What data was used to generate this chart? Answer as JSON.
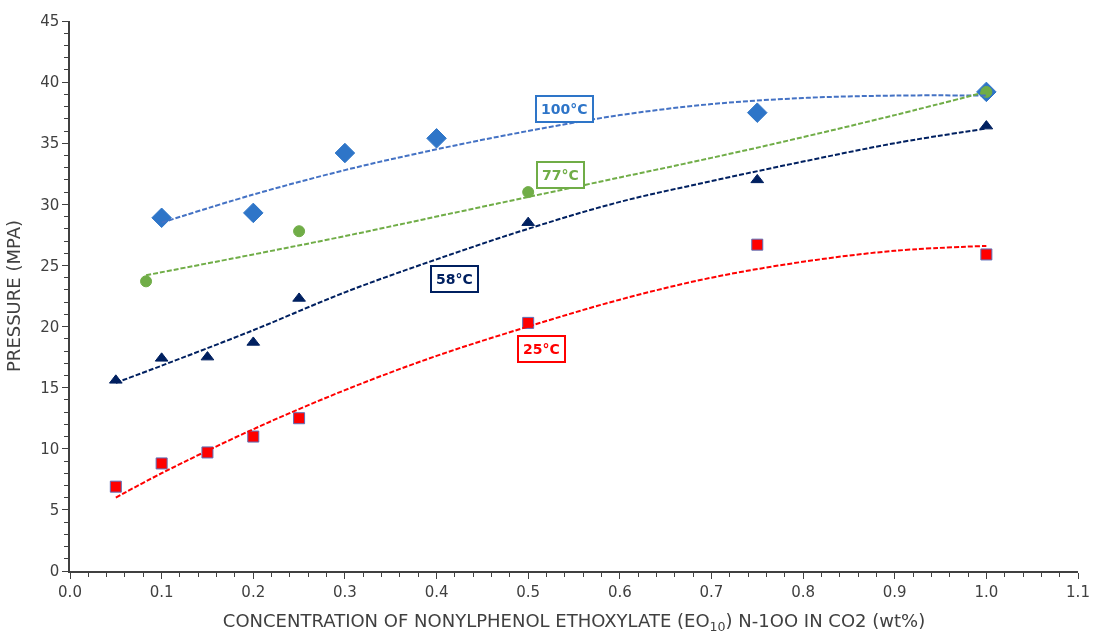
{
  "chart_data": {
    "type": "scatter",
    "xlabel": "CONCENTRATION OF NONYLPHENOL ETHOXYLATE (EO$_{10}$) N-1OO IN CO2 (wt%)",
    "ylabel": "PRESSURE (MPA)",
    "xlim": [
      0,
      1.1
    ],
    "ylim": [
      0,
      45
    ],
    "xticks": [
      {
        "value": 0,
        "label": "0.0"
      },
      0.1,
      0.2,
      0.3,
      0.4,
      0.5,
      0.6,
      0.7,
      0.8,
      0.9,
      {
        "value": 1,
        "label": "1.0"
      },
      1.1
    ],
    "yticks": [
      0,
      5,
      10,
      15,
      20,
      25,
      30,
      35,
      40,
      45
    ],
    "series": [
      {
        "marker": "diamond",
        "color": "#2e75c8",
        "x": [
          0.1,
          0.2,
          0.3,
          0.4,
          0.75,
          1.0
        ],
        "values": [
          28.9,
          29.3,
          34.2,
          35.4,
          37.5,
          39.2
        ]
      },
      {
        "marker": "circle",
        "color": "#70ad47",
        "x": [
          0.083,
          0.25,
          0.5,
          1.0
        ],
        "values": [
          23.7,
          27.8,
          31.0,
          39.2
        ]
      },
      {
        "marker": "triangle",
        "color": "#002060",
        "x": [
          0.05,
          0.1,
          0.15,
          0.2,
          0.25,
          0.5,
          0.75,
          1.0
        ],
        "values": [
          15.6,
          17.4,
          17.5,
          18.7,
          22.3,
          28.5,
          32.0,
          36.4
        ]
      },
      {
        "marker": "square",
        "color": "#ff0000",
        "x": [
          0.05,
          0.1,
          0.15,
          0.2,
          0.25,
          0.5,
          0.75,
          1.0
        ],
        "values": [
          6.9,
          8.8,
          9.7,
          11.0,
          12.5,
          20.3,
          26.7,
          25.9
        ]
      },
      {
        "type": "line",
        "line_style": "dashed",
        "color": "#4472c4",
        "x": [
          0.1,
          0.2,
          0.3,
          0.4,
          0.5,
          0.6,
          0.7,
          0.8,
          0.9,
          1.0
        ],
        "values": [
          28.5,
          30.8,
          32.8,
          34.5,
          36.0,
          37.3,
          38.2,
          38.7,
          38.9,
          38.9
        ]
      },
      {
        "type": "line",
        "line_style": "dashed",
        "color": "#70ad47",
        "x": [
          0.083,
          0.2,
          0.3,
          0.4,
          0.5,
          0.6,
          0.7,
          0.8,
          0.9,
          1.0
        ],
        "values": [
          24.2,
          25.9,
          27.4,
          29.0,
          30.6,
          32.2,
          33.8,
          35.5,
          37.3,
          39.2
        ]
      },
      {
        "type": "line",
        "line_style": "dashed",
        "color": "#002060",
        "x": [
          0.05,
          0.1,
          0.2,
          0.3,
          0.4,
          0.5,
          0.6,
          0.7,
          0.8,
          0.9,
          1.0
        ],
        "values": [
          15.4,
          16.8,
          19.7,
          22.8,
          25.5,
          28.0,
          30.2,
          31.9,
          33.5,
          35.0,
          36.2
        ]
      },
      {
        "type": "line",
        "line_style": "dashed",
        "color": "#ff0000",
        "x": [
          0.05,
          0.1,
          0.2,
          0.3,
          0.4,
          0.5,
          0.6,
          0.7,
          0.8,
          0.9,
          1.0
        ],
        "values": [
          6.0,
          8.0,
          11.6,
          14.8,
          17.6,
          20.0,
          22.2,
          24.0,
          25.3,
          26.2,
          26.6
        ]
      }
    ],
    "annotations": [
      "100°C",
      "77°C",
      "58°C",
      "25°C"
    ]
  }
}
